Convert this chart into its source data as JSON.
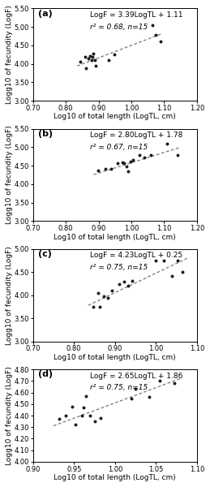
{
  "panels": [
    {
      "label": "(a)",
      "equation": "LogF = 3.39LogTL + 1.11",
      "r2_text": "r² = 0.68, n=15",
      "slope": 3.39,
      "intercept": 1.11,
      "xlim": [
        0.7,
        1.2
      ],
      "ylim": [
        3.0,
        5.5
      ],
      "xticks": [
        0.7,
        0.8,
        0.9,
        1.0,
        1.1,
        1.2
      ],
      "yticks": [
        3.0,
        3.5,
        4.0,
        4.5,
        5.0,
        5.5
      ],
      "xline": [
        0.835,
        1.095
      ],
      "scatter_x": [
        0.845,
        0.858,
        0.862,
        0.87,
        0.875,
        0.878,
        0.882,
        0.885,
        0.888,
        0.892,
        0.93,
        0.948,
        1.065,
        1.075,
        1.09
      ],
      "scatter_y": [
        4.05,
        4.2,
        3.88,
        4.15,
        4.22,
        4.1,
        4.18,
        4.27,
        4.1,
        3.95,
        4.1,
        4.25,
        5.05,
        4.78,
        4.6
      ]
    },
    {
      "label": "(b)",
      "equation": "LogF = 2.80LogTL + 1.78",
      "r2_text": "r² = 0.67, n=15",
      "slope": 2.8,
      "intercept": 1.78,
      "xlim": [
        0.7,
        1.2
      ],
      "ylim": [
        3.0,
        5.5
      ],
      "xticks": [
        0.7,
        0.8,
        0.9,
        1.0,
        1.1,
        1.2
      ],
      "yticks": [
        3.0,
        3.5,
        4.0,
        4.5,
        5.0,
        5.5
      ],
      "xline": [
        0.885,
        1.15
      ],
      "scatter_x": [
        0.898,
        0.92,
        0.938,
        0.958,
        0.972,
        0.978,
        0.985,
        0.99,
        0.998,
        1.005,
        1.025,
        1.04,
        1.06,
        1.11,
        1.14
      ],
      "scatter_y": [
        4.37,
        4.42,
        4.42,
        4.57,
        4.6,
        4.57,
        4.47,
        4.35,
        4.62,
        4.65,
        4.78,
        4.72,
        4.8,
        5.1,
        4.78
      ]
    },
    {
      "label": "(c)",
      "equation": "LogF = 4.23LogTL + 0.25",
      "r2_text": "r² = 0.75, n=15",
      "slope": 4.23,
      "intercept": 0.25,
      "xlim": [
        0.7,
        1.1
      ],
      "ylim": [
        3.0,
        5.0
      ],
      "xticks": [
        0.7,
        0.8,
        0.9,
        1.0,
        1.1
      ],
      "yticks": [
        3.0,
        3.5,
        4.0,
        4.5,
        5.0
      ],
      "xline": [
        0.835,
        1.08
      ],
      "scatter_x": [
        0.848,
        0.858,
        0.862,
        0.872,
        0.882,
        0.892,
        0.91,
        0.922,
        0.932,
        0.942,
        1.0,
        1.02,
        1.038,
        1.052,
        1.065
      ],
      "scatter_y": [
        3.75,
        4.05,
        3.75,
        3.98,
        3.95,
        4.1,
        4.25,
        4.3,
        4.2,
        4.32,
        4.75,
        4.75,
        4.42,
        4.75,
        4.5
      ]
    },
    {
      "label": "(d)",
      "equation": "LogF = 2.65LogTL + 1.86",
      "r2_text": "r² = 0.75, n=15",
      "slope": 2.65,
      "intercept": 1.86,
      "xlim": [
        0.9,
        1.1
      ],
      "ylim": [
        4.0,
        4.8
      ],
      "xticks": [
        0.9,
        0.95,
        1.0,
        1.05,
        1.1
      ],
      "yticks": [
        4.0,
        4.1,
        4.2,
        4.3,
        4.4,
        4.5,
        4.6,
        4.7,
        4.8
      ],
      "xline": [
        0.925,
        1.08
      ],
      "scatter_x": [
        0.932,
        0.94,
        0.948,
        0.952,
        0.96,
        0.962,
        0.965,
        0.97,
        0.975,
        0.982,
        1.02,
        1.025,
        1.042,
        1.055,
        1.072
      ],
      "scatter_y": [
        4.37,
        4.4,
        4.48,
        4.32,
        4.4,
        4.47,
        4.57,
        4.4,
        4.35,
        4.38,
        4.55,
        4.63,
        4.56,
        4.7,
        4.68
      ]
    }
  ],
  "ylabel": "Logg10 of fecundity (LogF)",
  "xlabel": "Log10 of total length (LogTL, cm)",
  "dot_color": "#1a1a1a",
  "line_color": "#777777",
  "bg_color": "#ffffff",
  "fontsize_label": 6.5,
  "fontsize_tick": 6.0,
  "fontsize_eq": 6.5,
  "fontsize_panel": 8
}
